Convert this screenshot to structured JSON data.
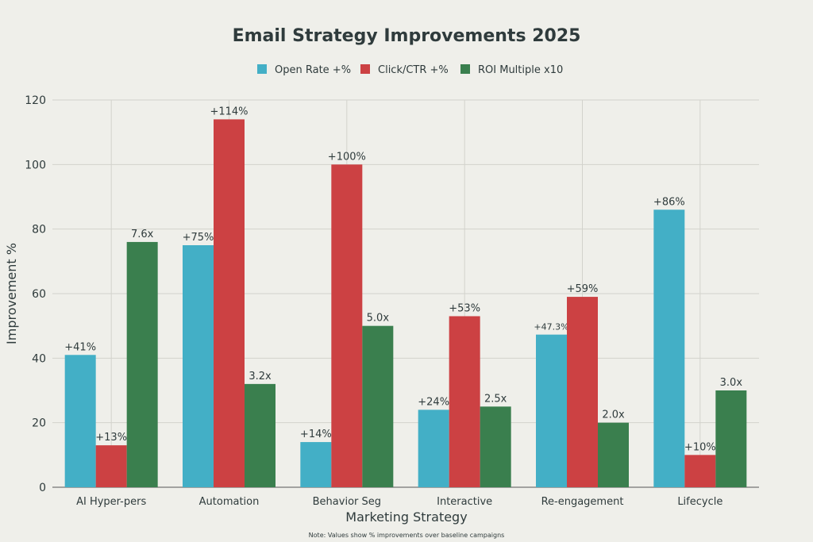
{
  "chart_data": {
    "type": "bar",
    "title": "Email Strategy Improvements 2025",
    "xlabel": "Marketing Strategy",
    "ylabel": "Improvement %",
    "ylim": [
      0,
      120
    ],
    "yticks": [
      0,
      20,
      40,
      60,
      80,
      100,
      120
    ],
    "grid": true,
    "legend_position": "top",
    "note": "Note: Values show % improvements over baseline campaigns",
    "categories": [
      "AI Hyper-pers",
      "Automation",
      "Behavior Seg",
      "Interactive",
      "Re-engagement",
      "Lifecycle"
    ],
    "series": [
      {
        "name": "Open Rate +%",
        "color": "#43afc6",
        "values": [
          41,
          75,
          14,
          24,
          47.3,
          86
        ],
        "labels": [
          "+41%",
          "+75%",
          "+14%",
          "+24%",
          "+47.3%",
          "+86%"
        ]
      },
      {
        "name": "Click/CTR +%",
        "color": "#cc4143",
        "values": [
          13,
          114,
          100,
          53,
          59,
          10
        ],
        "labels": [
          "+13%",
          "+114%",
          "+100%",
          "+53%",
          "+59%",
          "+10%"
        ]
      },
      {
        "name": "ROI Multiple x10",
        "color": "#3a7f4e",
        "values": [
          76,
          32,
          50,
          25,
          20,
          30
        ],
        "labels": [
          "7.6x",
          "3.2x",
          "5.0x",
          "2.5x",
          "2.0x",
          "3.0x"
        ]
      }
    ]
  }
}
